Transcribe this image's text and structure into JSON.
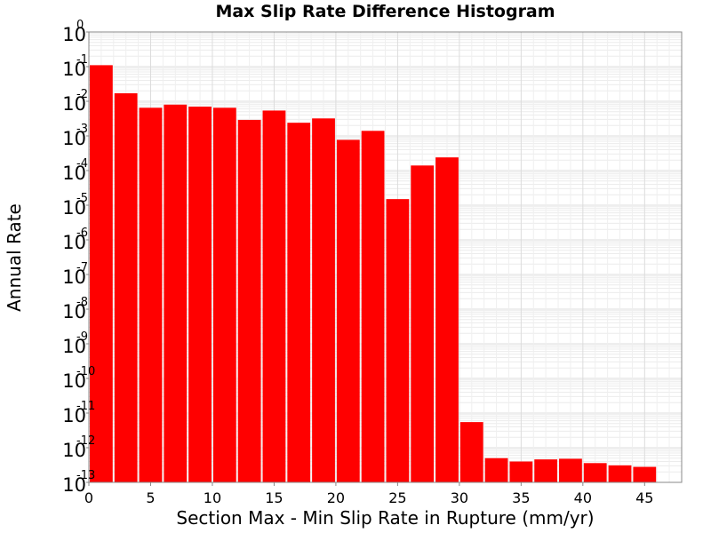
{
  "chart_data": {
    "type": "bar",
    "title": "Max Slip Rate Difference Histogram",
    "xlabel": "Section Max - Min Slip Rate in Rupture (mm/yr)",
    "ylabel": "Annual Rate",
    "x_ticks": [
      0,
      5,
      10,
      15,
      20,
      25,
      30,
      35,
      40,
      45
    ],
    "xlim": [
      0,
      48
    ],
    "y_scale": "log",
    "ylim": [
      1e-13,
      1
    ],
    "y_ticks": [
      {
        "base": "10",
        "exp": "0",
        "value": 1
      },
      {
        "base": "10",
        "exp": "-1",
        "value": 0.1
      },
      {
        "base": "10",
        "exp": "-2",
        "value": 0.01
      },
      {
        "base": "10",
        "exp": "-3",
        "value": 0.001
      },
      {
        "base": "10",
        "exp": "-4",
        "value": 0.0001
      },
      {
        "base": "10",
        "exp": "-5",
        "value": 1e-05
      },
      {
        "base": "10",
        "exp": "-6",
        "value": 1e-06
      },
      {
        "base": "10",
        "exp": "-7",
        "value": 1e-07
      },
      {
        "base": "10",
        "exp": "-8",
        "value": 1e-08
      },
      {
        "base": "10",
        "exp": "-9",
        "value": 1e-09
      },
      {
        "base": "10",
        "exp": "-10",
        "value": 1e-10
      },
      {
        "base": "10",
        "exp": "-11",
        "value": 1e-11
      },
      {
        "base": "10",
        "exp": "-12",
        "value": 1e-12
      },
      {
        "base": "10",
        "exp": "-13",
        "value": 1e-13
      }
    ],
    "bin_width": 2,
    "bin_starts": [
      0,
      2,
      4,
      6,
      8,
      10,
      12,
      14,
      16,
      18,
      20,
      22,
      24,
      26,
      28,
      30,
      32,
      34,
      36,
      38,
      40,
      42,
      44
    ],
    "values": [
      0.11,
      0.017,
      0.0065,
      0.008,
      0.007,
      0.0065,
      0.0029,
      0.0054,
      0.0024,
      0.0032,
      0.00077,
      0.0014,
      1.5e-05,
      0.00014,
      0.00024,
      5.5e-12,
      5e-13,
      4e-13,
      4.6e-13,
      4.8e-13,
      3.6e-13,
      3.1e-13,
      2.8e-13
    ],
    "bar_color": "#ff0000",
    "grid": true,
    "legend": "none"
  }
}
